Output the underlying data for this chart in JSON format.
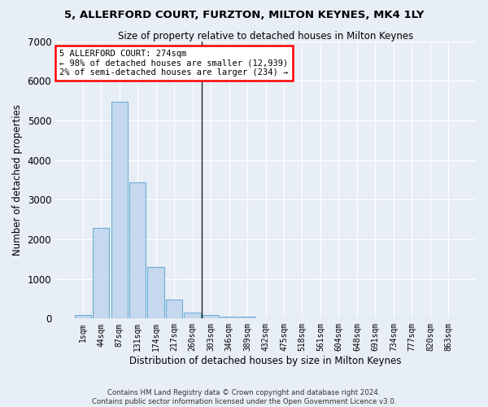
{
  "title": "5, ALLERFORD COURT, FURZTON, MILTON KEYNES, MK4 1LY",
  "subtitle": "Size of property relative to detached houses in Milton Keynes",
  "xlabel": "Distribution of detached houses by size in Milton Keynes",
  "ylabel": "Number of detached properties",
  "footer_line1": "Contains HM Land Registry data © Crown copyright and database right 2024.",
  "footer_line2": "Contains public sector information licensed under the Open Government Licence v3.0.",
  "bar_labels": [
    "1sqm",
    "44sqm",
    "87sqm",
    "131sqm",
    "174sqm",
    "217sqm",
    "260sqm",
    "303sqm",
    "346sqm",
    "389sqm",
    "432sqm",
    "475sqm",
    "518sqm",
    "561sqm",
    "604sqm",
    "648sqm",
    "691sqm",
    "734sqm",
    "777sqm",
    "820sqm",
    "863sqm"
  ],
  "bar_values": [
    80,
    2280,
    5480,
    3440,
    1310,
    470,
    160,
    90,
    55,
    40,
    0,
    0,
    0,
    0,
    0,
    0,
    0,
    0,
    0,
    0,
    0
  ],
  "bar_color": "#c5d8ed",
  "bar_edge_color": "#6aafd6",
  "bg_color": "#e8eef6",
  "grid_color": "#ffffff",
  "annotation_box_text": "5 ALLERFORD COURT: 274sqm\n← 98% of detached houses are smaller (12,939)\n2% of semi-detached houses are larger (234) →",
  "vline_x": 6.5,
  "ylim": [
    0,
    7000
  ],
  "yticks": [
    0,
    1000,
    2000,
    3000,
    4000,
    5000,
    6000,
    7000
  ],
  "title_fontsize": 10,
  "subtitle_fontsize": 9
}
